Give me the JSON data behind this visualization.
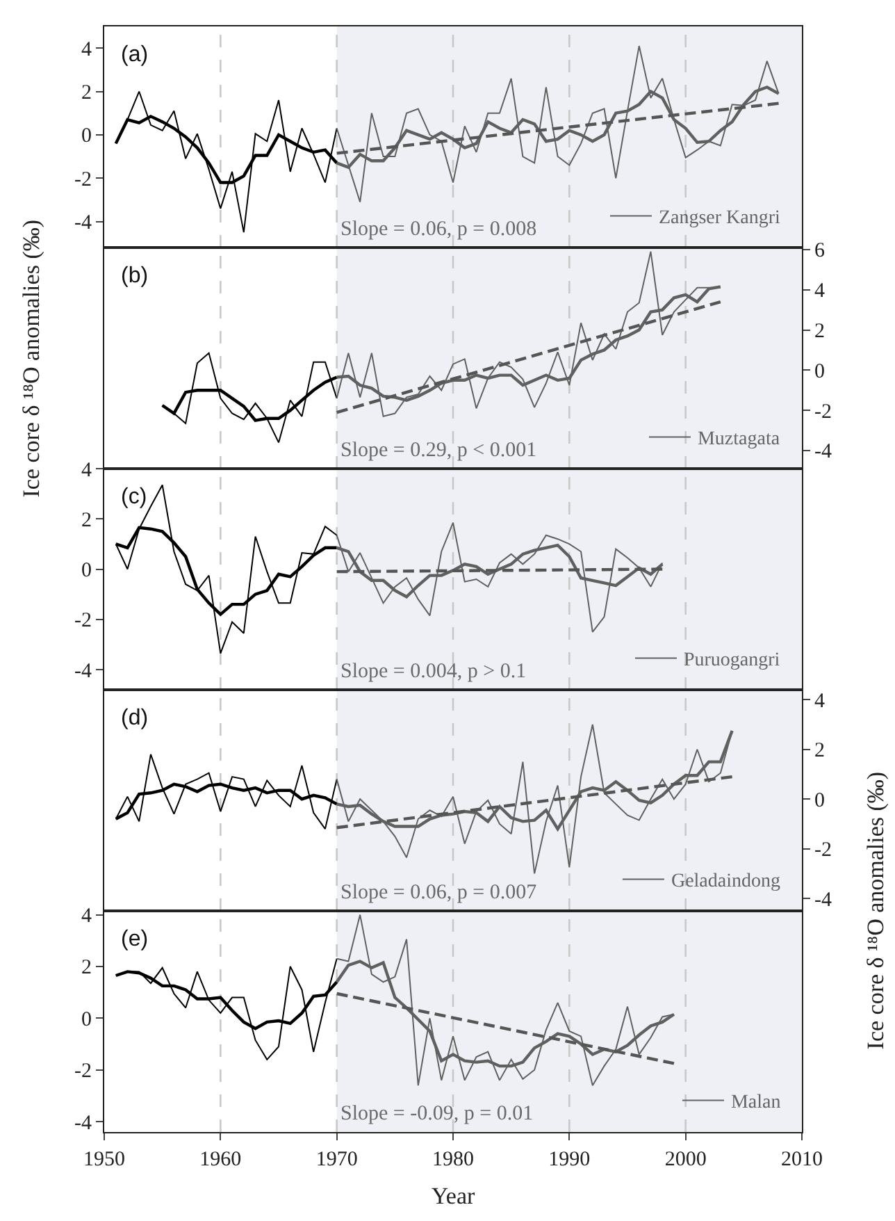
{
  "chart_data": [
    {
      "type": "line",
      "xlim": [
        1950,
        2010
      ],
      "ylim": [
        -5.2,
        5
      ],
      "yticks": [
        -4,
        -2,
        0,
        2,
        4
      ],
      "tick_labels": "y",
      "legend": "bottom right",
      "ylabel": "Ice core δ ¹⁸O anomalies (‰)",
      "annotations": [
        "(a)",
        "Slope = 0.06, p = 0.008"
      ],
      "bands": [
        {
          "axis": "x",
          "from": 1970,
          "to": 2010,
          "color": "#eef0f6"
        }
      ],
      "ref_lines": [
        {
          "axis": "x",
          "value": 1960,
          "color": "#c8c8c8",
          "line_style": "dashed"
        },
        {
          "axis": "x",
          "value": 1970,
          "color": "#c8c8c8",
          "line_style": "dashed"
        },
        {
          "axis": "x",
          "value": 1980,
          "color": "#c8c8c8",
          "line_style": "dashed"
        },
        {
          "axis": "x",
          "value": 1990,
          "color": "#c8c8c8",
          "line_style": "dashed"
        },
        {
          "axis": "x",
          "value": 2000,
          "color": "#c8c8c8",
          "line_style": "dashed"
        }
      ],
      "series": [
        {
          "color": "#000000",
          "x": [
            1951,
            1952,
            1953,
            1954,
            1955,
            1956,
            1957,
            1958,
            1959,
            1960,
            1961,
            1962,
            1963,
            1964,
            1965,
            1966,
            1967,
            1968,
            1969,
            1970
          ],
          "values": [
            -0.4,
            0.7,
            2.0,
            0.45,
            0.2,
            1.1,
            -1.1,
            0.05,
            -1.6,
            -3.4,
            -1.7,
            -4.5,
            0.05,
            -0.3,
            1.6,
            -1.7,
            0.3,
            -0.9,
            -2.2,
            0.3
          ]
        },
        {
          "name": "Zangser Kangri",
          "color": "#606060",
          "x": [
            1970,
            1971,
            1972,
            1973,
            1974,
            1975,
            1976,
            1977,
            1978,
            1979,
            1980,
            1981,
            1982,
            1983,
            1984,
            1985,
            1986,
            1987,
            1988,
            1989,
            1990,
            1991,
            1992,
            1993,
            1994,
            1995,
            1996,
            1997,
            1998,
            1999,
            2000,
            2001,
            2002,
            2003,
            2004,
            2005,
            2006,
            2007,
            2008
          ],
          "values": [
            0.3,
            -1.4,
            -3.1,
            1.0,
            -1.0,
            -1.0,
            1.0,
            1.2,
            0.0,
            -0.3,
            -2.2,
            0.4,
            -0.8,
            1.0,
            1.0,
            2.6,
            -1.0,
            -1.3,
            2.2,
            -1.0,
            -1.4,
            -0.4,
            1.0,
            1.2,
            -2.0,
            1.1,
            4.1,
            1.7,
            2.6,
            0.7,
            -1.05,
            -0.7,
            -0.3,
            -0.5,
            1.4,
            1.35,
            1.6,
            3.4,
            1.9
          ]
        },
        {
          "color": "#000000",
          "x": [
            1951,
            1952,
            1953,
            1954,
            1955,
            1956,
            1957,
            1958,
            1959,
            1960,
            1961,
            1962,
            1963,
            1964,
            1965,
            1966,
            1967,
            1968,
            1969,
            1970
          ],
          "values": [
            -0.4,
            0.7,
            0.55,
            0.85,
            0.6,
            0.3,
            -0.1,
            -0.6,
            -1.3,
            -2.2,
            -2.2,
            -1.9,
            -0.95,
            -0.95,
            0.0,
            -0.3,
            -0.6,
            -0.8,
            -0.7,
            -1.3
          ]
        },
        {
          "color": "#606060",
          "x": [
            1970,
            1971,
            1972,
            1973,
            1974,
            1975,
            1976,
            1977,
            1978,
            1979,
            1980,
            1981,
            1982,
            1983,
            1984,
            1985,
            1986,
            1987,
            1988,
            1989,
            1990,
            1991,
            1992,
            1993,
            1994,
            1995,
            1996,
            1997,
            1998,
            1999,
            2000,
            2001,
            2002,
            2003,
            2004,
            2005,
            2006,
            2007,
            2008
          ],
          "values": [
            -1.3,
            -1.5,
            -0.9,
            -1.2,
            -1.2,
            -0.6,
            0.2,
            0.0,
            -0.2,
            0.1,
            -0.2,
            -0.6,
            -0.4,
            0.6,
            0.3,
            0.1,
            0.7,
            0.5,
            -0.3,
            -0.2,
            0.2,
            0.0,
            -0.3,
            0.0,
            1.0,
            1.1,
            1.4,
            2.0,
            1.7,
            0.7,
            0.3,
            -0.35,
            -0.3,
            0.2,
            0.6,
            1.4,
            2.0,
            2.2,
            1.9
          ]
        },
        {
          "color": "#555555",
          "line_style": "dashed",
          "x": [
            1970,
            2008
          ],
          "values": [
            -0.85,
            1.45
          ]
        }
      ]
    },
    {
      "type": "line",
      "xlim": [
        1950,
        2010
      ],
      "y2lim": [
        -4.9,
        6.1
      ],
      "y2ticks": [
        -4,
        -2,
        0,
        2,
        4,
        6
      ],
      "tick_labels": "y",
      "legend": "bottom right",
      "annotations": [
        "(b)",
        "Slope = 0.29, p < 0.001"
      ],
      "bands": [
        {
          "axis": "x",
          "from": 1970,
          "to": 2010,
          "color": "#eef0f6"
        }
      ],
      "ref_lines": [
        {
          "axis": "x",
          "value": 1960,
          "color": "#c8c8c8",
          "line_style": "dashed"
        },
        {
          "axis": "x",
          "value": 1970,
          "color": "#c8c8c8",
          "line_style": "dashed"
        },
        {
          "axis": "x",
          "value": 1980,
          "color": "#c8c8c8",
          "line_style": "dashed"
        },
        {
          "axis": "x",
          "value": 1990,
          "color": "#c8c8c8",
          "line_style": "dashed"
        },
        {
          "axis": "x",
          "value": 2000,
          "color": "#c8c8c8",
          "line_style": "dashed"
        }
      ],
      "series": [
        {
          "axis": "y2",
          "color": "#000000",
          "x": [
            1955,
            1956,
            1957,
            1958,
            1959,
            1960,
            1961,
            1962,
            1963,
            1964,
            1965,
            1966,
            1967,
            1968,
            1969,
            1970
          ],
          "values": [
            -1.75,
            -2.15,
            -2.65,
            0.35,
            0.85,
            -1.4,
            -2.15,
            -2.45,
            -1.65,
            -2.4,
            -3.6,
            -1.5,
            -2.3,
            0.4,
            0.4,
            -1.4
          ]
        },
        {
          "axis": "y2",
          "name": "Muztagata",
          "color": "#606060",
          "x": [
            1970,
            1971,
            1972,
            1973,
            1974,
            1975,
            1976,
            1977,
            1978,
            1979,
            1980,
            1981,
            1982,
            1983,
            1984,
            1985,
            1986,
            1987,
            1988,
            1989,
            1990,
            1991,
            1992,
            1993,
            1994,
            1995,
            1996,
            1997,
            1998,
            1999,
            2000,
            2001,
            2002,
            2003
          ],
          "values": [
            -1.4,
            0.85,
            -1.35,
            0.85,
            -2.3,
            -2.15,
            -1.35,
            -1.2,
            -0.3,
            -1.0,
            0.3,
            0.55,
            -1.9,
            -0.4,
            0.4,
            0.15,
            -0.45,
            -1.85,
            -0.65,
            0.9,
            -0.75,
            2.35,
            0.5,
            1.8,
            1.05,
            2.9,
            3.35,
            5.9,
            1.75,
            2.9,
            3.5,
            4.1,
            4.1,
            4.1
          ]
        },
        {
          "axis": "y2",
          "color": "#000000",
          "x": [
            1955,
            1956,
            1957,
            1958,
            1959,
            1960,
            1961,
            1962,
            1963,
            1964,
            1965,
            1966,
            1967,
            1968,
            1969,
            1970
          ],
          "values": [
            -1.75,
            -2.15,
            -1.1,
            -1.0,
            -1.0,
            -1.0,
            -1.4,
            -1.8,
            -2.5,
            -2.4,
            -2.4,
            -2.0,
            -1.5,
            -1.0,
            -0.6,
            -0.35
          ]
        },
        {
          "axis": "y2",
          "color": "#606060",
          "x": [
            1970,
            1971,
            1972,
            1973,
            1974,
            1975,
            1976,
            1977,
            1978,
            1979,
            1980,
            1981,
            1982,
            1983,
            1984,
            1985,
            1986,
            1987,
            1988,
            1989,
            1990,
            1991,
            1992,
            1993,
            1994,
            1995,
            1996,
            1997,
            1998,
            1999,
            2000,
            2001,
            2002,
            2003
          ],
          "values": [
            -0.35,
            -0.3,
            -0.75,
            -0.9,
            -1.3,
            -1.35,
            -1.5,
            -1.3,
            -1.0,
            -0.65,
            -0.5,
            -0.5,
            -0.25,
            -0.4,
            -0.25,
            -0.25,
            -0.75,
            -0.5,
            -0.25,
            -0.5,
            -0.4,
            0.5,
            0.8,
            1.0,
            1.5,
            1.7,
            2.0,
            2.9,
            3.0,
            3.6,
            3.75,
            3.4,
            4.05,
            4.15
          ]
        },
        {
          "axis": "y2",
          "color": "#555555",
          "line_style": "dashed",
          "x": [
            1970,
            2003
          ],
          "values": [
            -2.1,
            3.4
          ]
        }
      ]
    },
    {
      "type": "line",
      "xlim": [
        1950,
        2010
      ],
      "ylim": [
        -4.8,
        4
      ],
      "yticks": [
        -4,
        -2,
        0,
        2,
        4
      ],
      "tick_labels": "y",
      "legend": "bottom right",
      "annotations": [
        "(c)",
        "Slope = 0.004, p > 0.1"
      ],
      "bands": [
        {
          "axis": "x",
          "from": 1970,
          "to": 2010,
          "color": "#eef0f6"
        }
      ],
      "ref_lines": [
        {
          "axis": "x",
          "value": 1960,
          "color": "#c8c8c8",
          "line_style": "dashed"
        },
        {
          "axis": "x",
          "value": 1970,
          "color": "#c8c8c8",
          "line_style": "dashed"
        },
        {
          "axis": "x",
          "value": 1980,
          "color": "#c8c8c8",
          "line_style": "dashed"
        },
        {
          "axis": "x",
          "value": 1990,
          "color": "#c8c8c8",
          "line_style": "dashed"
        },
        {
          "axis": "x",
          "value": 2000,
          "color": "#c8c8c8",
          "line_style": "dashed"
        }
      ],
      "series": [
        {
          "color": "#000000",
          "x": [
            1951,
            1952,
            1953,
            1954,
            1955,
            1956,
            1957,
            1958,
            1959,
            1960,
            1961,
            1962,
            1963,
            1964,
            1965,
            1966,
            1967,
            1968,
            1969,
            1970
          ],
          "values": [
            1.0,
            0.0,
            1.6,
            2.5,
            3.35,
            0.7,
            -0.6,
            -0.85,
            -0.25,
            -3.35,
            -2.1,
            -2.55,
            1.3,
            -0.1,
            -1.35,
            -1.35,
            0.65,
            0.6,
            1.7,
            1.35
          ]
        },
        {
          "name": "Puruogangri",
          "color": "#606060",
          "x": [
            1970,
            1971,
            1972,
            1973,
            1974,
            1975,
            1976,
            1977,
            1978,
            1979,
            1980,
            1981,
            1982,
            1983,
            1984,
            1985,
            1986,
            1987,
            1988,
            1989,
            1990,
            1991,
            1992,
            1993,
            1994,
            1995,
            1996,
            1997,
            1998
          ],
          "values": [
            1.35,
            -0.1,
            0.65,
            -0.35,
            -1.35,
            -0.7,
            -0.35,
            -1.2,
            -1.85,
            0.7,
            1.85,
            -0.5,
            -0.4,
            -0.7,
            0.25,
            0.6,
            0.2,
            0.6,
            1.35,
            1.2,
            1.0,
            0.7,
            -2.5,
            -1.9,
            0.8,
            0.45,
            0.05,
            -0.7,
            0.25
          ]
        },
        {
          "color": "#000000",
          "x": [
            1951,
            1952,
            1953,
            1954,
            1955,
            1956,
            1957,
            1958,
            1959,
            1960,
            1961,
            1962,
            1963,
            1964,
            1965,
            1966,
            1967,
            1968,
            1969,
            1970
          ],
          "values": [
            1.0,
            0.85,
            1.65,
            1.6,
            1.5,
            1.05,
            0.5,
            -0.8,
            -1.35,
            -1.8,
            -1.4,
            -1.4,
            -1.0,
            -0.85,
            -0.2,
            -0.3,
            0.1,
            0.55,
            0.85,
            0.85
          ]
        },
        {
          "color": "#606060",
          "x": [
            1970,
            1971,
            1972,
            1973,
            1974,
            1975,
            1976,
            1977,
            1978,
            1979,
            1980,
            1981,
            1982,
            1983,
            1984,
            1985,
            1986,
            1987,
            1988,
            1989,
            1990,
            1991,
            1992,
            1993,
            1994,
            1995,
            1996,
            1997,
            1998
          ],
          "values": [
            0.85,
            0.7,
            -0.1,
            -0.45,
            -0.45,
            -0.85,
            -1.1,
            -0.65,
            -0.25,
            -0.25,
            -0.05,
            0.2,
            0.1,
            -0.2,
            0.0,
            0.2,
            0.6,
            0.75,
            0.85,
            0.95,
            0.5,
            -0.35,
            -0.45,
            -0.55,
            -0.65,
            -0.3,
            0.05,
            -0.2,
            0.2
          ]
        },
        {
          "color": "#555555",
          "line_style": "dashed",
          "x": [
            1970,
            1998
          ],
          "values": [
            -0.1,
            0.0
          ]
        }
      ]
    },
    {
      "type": "line",
      "xlim": [
        1950,
        2010
      ],
      "y2lim": [
        -4.5,
        4.4
      ],
      "y2ticks": [
        -4,
        -2,
        0,
        2,
        4
      ],
      "tick_labels": "y",
      "legend": "bottom right",
      "y2label": "Ice core δ ¹⁸O anomalies (‰)",
      "annotations": [
        "(d)",
        "Slope = 0.06, p = 0.007"
      ],
      "bands": [
        {
          "axis": "x",
          "from": 1970,
          "to": 2010,
          "color": "#eef0f6"
        }
      ],
      "ref_lines": [
        {
          "axis": "x",
          "value": 1960,
          "color": "#c8c8c8",
          "line_style": "dashed"
        },
        {
          "axis": "x",
          "value": 1970,
          "color": "#c8c8c8",
          "line_style": "dashed"
        },
        {
          "axis": "x",
          "value": 1980,
          "color": "#c8c8c8",
          "line_style": "dashed"
        },
        {
          "axis": "x",
          "value": 1990,
          "color": "#c8c8c8",
          "line_style": "dashed"
        },
        {
          "axis": "x",
          "value": 2000,
          "color": "#c8c8c8",
          "line_style": "dashed"
        }
      ],
      "series": [
        {
          "axis": "y2",
          "color": "#000000",
          "x": [
            1951,
            1952,
            1953,
            1954,
            1955,
            1956,
            1957,
            1958,
            1959,
            1960,
            1961,
            1962,
            1963,
            1964,
            1965,
            1966,
            1967,
            1968,
            1969,
            1970
          ],
          "values": [
            -0.8,
            0.1,
            -0.9,
            1.8,
            0.45,
            -0.6,
            0.6,
            0.8,
            1.05,
            -0.5,
            0.9,
            0.8,
            -0.3,
            0.75,
            0.15,
            -0.3,
            1.35,
            -0.55,
            -1.2,
            0.8
          ]
        },
        {
          "axis": "y2",
          "name": "Geladaindong",
          "color": "#606060",
          "x": [
            1970,
            1971,
            1972,
            1973,
            1974,
            1975,
            1976,
            1977,
            1978,
            1979,
            1980,
            1981,
            1982,
            1983,
            1984,
            1985,
            1986,
            1987,
            1988,
            1989,
            1990,
            1991,
            1992,
            1993,
            1994,
            1995,
            1996,
            1997,
            1998,
            1999,
            2000,
            2001,
            2002,
            2003,
            2004
          ],
          "values": [
            0.8,
            -0.9,
            0.0,
            -0.45,
            -0.9,
            -1.5,
            -2.35,
            -0.8,
            -0.45,
            -0.7,
            0.1,
            -1.8,
            -0.5,
            -0.05,
            -1.0,
            -1.4,
            1.5,
            -3.0,
            -0.9,
            0.55,
            -2.75,
            0.9,
            3.0,
            0.25,
            -0.2,
            -0.65,
            -0.85,
            0.0,
            0.8,
            0.0,
            0.6,
            2.0,
            0.7,
            1.05,
            2.75
          ]
        },
        {
          "axis": "y2",
          "color": "#000000",
          "x": [
            1951,
            1952,
            1953,
            1954,
            1955,
            1956,
            1957,
            1958,
            1959,
            1960,
            1961,
            1962,
            1963,
            1964,
            1965,
            1966,
            1967,
            1968,
            1969,
            1970
          ],
          "values": [
            -0.8,
            -0.55,
            0.2,
            0.25,
            0.35,
            0.6,
            0.5,
            0.3,
            0.55,
            0.6,
            0.45,
            0.35,
            0.45,
            0.25,
            0.35,
            0.35,
            0.0,
            0.15,
            0.05,
            -0.2
          ]
        },
        {
          "axis": "y2",
          "color": "#606060",
          "x": [
            1970,
            1971,
            1972,
            1973,
            1974,
            1975,
            1976,
            1977,
            1978,
            1979,
            1980,
            1981,
            1982,
            1983,
            1984,
            1985,
            1986,
            1987,
            1988,
            1989,
            1990,
            1991,
            1992,
            1993,
            1994,
            1995,
            1996,
            1997,
            1998,
            1999,
            2000,
            2001,
            2002,
            2003,
            2004
          ],
          "values": [
            -0.2,
            -0.3,
            -0.25,
            -0.6,
            -0.9,
            -1.1,
            -1.1,
            -1.1,
            -0.8,
            -0.65,
            -0.6,
            -0.5,
            -0.55,
            -0.9,
            -0.3,
            -0.75,
            -0.9,
            -0.85,
            -0.45,
            -1.2,
            -0.45,
            0.3,
            0.45,
            0.35,
            0.7,
            0.35,
            -0.05,
            -0.15,
            0.15,
            0.6,
            0.95,
            0.95,
            1.5,
            1.5,
            2.75
          ]
        },
        {
          "axis": "y2",
          "color": "#555555",
          "line_style": "dashed",
          "x": [
            1970,
            2004
          ],
          "values": [
            -1.15,
            0.9
          ]
        }
      ]
    },
    {
      "type": "line",
      "xlim": [
        1950,
        2010
      ],
      "xticks": [
        1950,
        1960,
        1970,
        1980,
        1990,
        2000,
        2010
      ],
      "ylim": [
        -4.4,
        4.15
      ],
      "yticks": [
        -4,
        -2,
        0,
        2,
        4
      ],
      "legend": "bottom right",
      "xlabel": "Year",
      "annotations": [
        "(e)",
        "Slope = -0.09, p = 0.01"
      ],
      "bands": [
        {
          "axis": "x",
          "from": 1970,
          "to": 2010,
          "color": "#eef0f6"
        }
      ],
      "ref_lines": [
        {
          "axis": "x",
          "value": 1960,
          "color": "#c8c8c8",
          "line_style": "dashed"
        },
        {
          "axis": "x",
          "value": 1970,
          "color": "#c8c8c8",
          "line_style": "dashed"
        },
        {
          "axis": "x",
          "value": 1980,
          "color": "#c8c8c8",
          "line_style": "dashed"
        },
        {
          "axis": "x",
          "value": 1990,
          "color": "#c8c8c8",
          "line_style": "dashed"
        },
        {
          "axis": "x",
          "value": 2000,
          "color": "#c8c8c8",
          "line_style": "dashed"
        }
      ],
      "series": [
        {
          "color": "#000000",
          "x": [
            1951,
            1952,
            1953,
            1954,
            1955,
            1956,
            1957,
            1958,
            1959,
            1960,
            1961,
            1962,
            1963,
            1964,
            1965,
            1966,
            1967,
            1968,
            1969,
            1970
          ],
          "values": [
            1.65,
            1.8,
            1.8,
            1.35,
            1.95,
            0.95,
            0.4,
            1.8,
            0.7,
            0.2,
            0.8,
            0.8,
            -0.85,
            -1.6,
            -1.1,
            2.0,
            1.1,
            -1.3,
            0.6,
            2.3
          ]
        },
        {
          "name": "Malan",
          "color": "#606060",
          "x": [
            1970,
            1971,
            1972,
            1973,
            1974,
            1975,
            1976,
            1977,
            1978,
            1979,
            1980,
            1981,
            1982,
            1983,
            1984,
            1985,
            1986,
            1987,
            1988,
            1989,
            1990,
            1991,
            1992,
            1993,
            1994,
            1995,
            1996,
            1997,
            1998,
            1999
          ],
          "values": [
            2.3,
            2.2,
            4.0,
            1.7,
            1.4,
            1.6,
            3.05,
            -2.6,
            0.0,
            -2.4,
            -0.7,
            -2.4,
            -1.5,
            -1.3,
            -2.4,
            -1.6,
            -2.35,
            -2.0,
            -0.45,
            0.6,
            -0.5,
            -0.7,
            -2.6,
            -1.85,
            -1.2,
            0.45,
            -1.4,
            -0.75,
            0.05,
            0.15
          ]
        },
        {
          "color": "#000000",
          "x": [
            1951,
            1952,
            1953,
            1954,
            1955,
            1956,
            1957,
            1958,
            1959,
            1960,
            1961,
            1962,
            1963,
            1964,
            1965,
            1966,
            1967,
            1968,
            1969,
            1970
          ],
          "values": [
            1.65,
            1.8,
            1.75,
            1.55,
            1.25,
            1.25,
            1.1,
            0.75,
            0.75,
            0.8,
            0.3,
            -0.15,
            -0.4,
            -0.15,
            -0.1,
            -0.2,
            0.2,
            0.85,
            0.9,
            1.4
          ]
        },
        {
          "color": "#606060",
          "x": [
            1970,
            1971,
            1972,
            1973,
            1974,
            1975,
            1976,
            1977,
            1978,
            1979,
            1980,
            1981,
            1982,
            1983,
            1984,
            1985,
            1986,
            1987,
            1988,
            1989,
            1990,
            1991,
            1992,
            1993,
            1994,
            1995,
            1996,
            1997,
            1998,
            1999
          ],
          "values": [
            1.4,
            2.05,
            2.2,
            1.95,
            2.15,
            0.8,
            0.4,
            -0.05,
            -0.5,
            -1.65,
            -1.4,
            -1.65,
            -1.7,
            -1.65,
            -1.85,
            -1.85,
            -1.7,
            -1.15,
            -0.9,
            -0.6,
            -0.7,
            -1.0,
            -1.4,
            -1.2,
            -1.3,
            -1.05,
            -0.65,
            -0.3,
            -0.15,
            0.15
          ]
        },
        {
          "color": "#555555",
          "line_style": "dashed",
          "x": [
            1970,
            1999
          ],
          "values": [
            0.95,
            -1.75
          ]
        }
      ]
    }
  ]
}
